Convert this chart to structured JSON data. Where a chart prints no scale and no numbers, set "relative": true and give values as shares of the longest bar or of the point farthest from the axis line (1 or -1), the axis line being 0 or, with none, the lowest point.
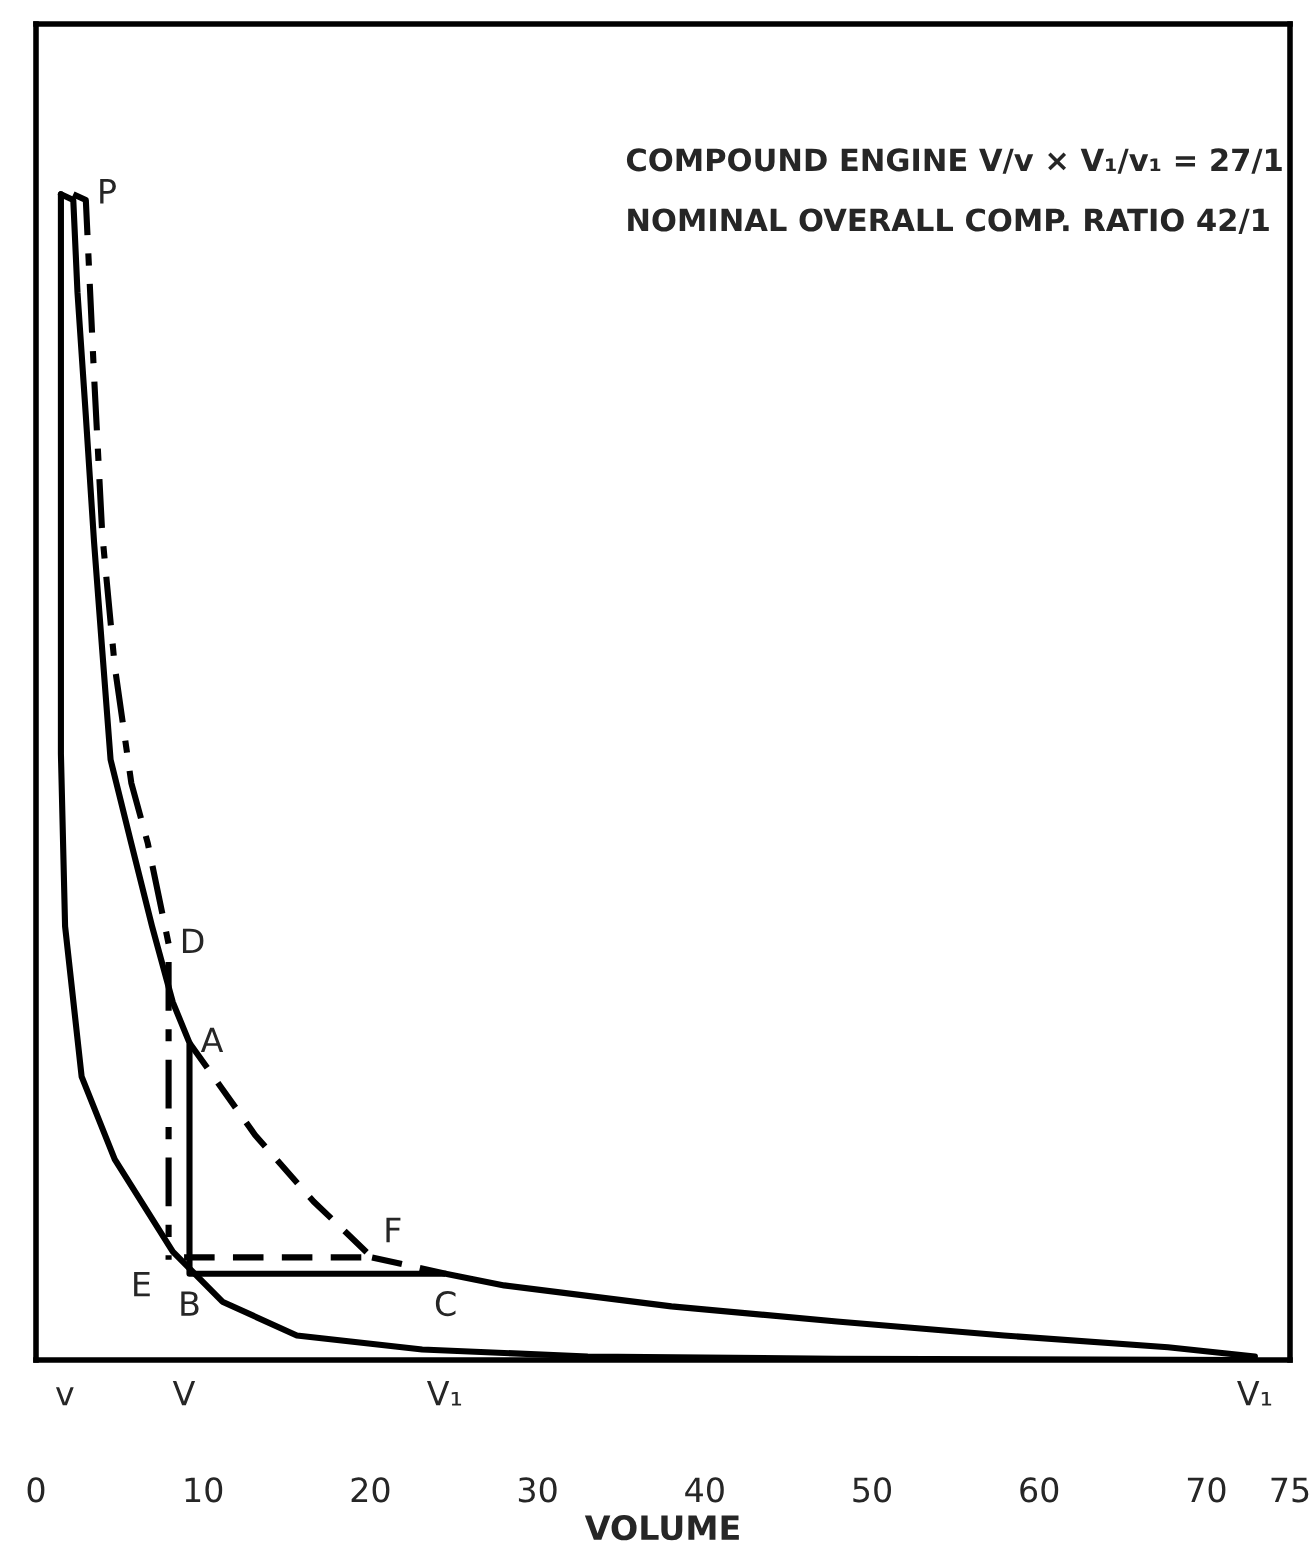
{
  "chart_data": {
    "type": "line",
    "relative": true,
    "xlabel": "VOLUME",
    "xlim": [
      0,
      75
    ],
    "xticks": [
      0,
      10,
      20,
      30,
      40,
      50,
      60,
      70,
      75
    ],
    "tick_labels": "x",
    "grid": false,
    "legend": false,
    "marker": "none",
    "series": [
      {
        "color": "#000000",
        "line_style": "solid",
        "x": [
          1.49,
          1.49,
          1.74,
          2.73,
          4.71,
          8.18,
          11.15,
          15.6,
          23.1,
          33.0,
          47.9,
          72.7
        ],
        "values": [
          1.0,
          0.52,
          0.372,
          0.243,
          0.172,
          0.093,
          0.05,
          0.021,
          0.009,
          0.003,
          0.001,
          0.0
        ]
      },
      {
        "color": "#000000",
        "line_style": "solid",
        "x": [
          1.49,
          2.23,
          2.48,
          2.98,
          3.47,
          3.96,
          4.46,
          5.7,
          6.94,
          8.18,
          9.18,
          9.18,
          24.5,
          28.0,
          38.0,
          47.9,
          57.9,
          67.7,
          72.9
        ],
        "values": [
          1.0,
          0.995,
          0.916,
          0.81,
          0.702,
          0.609,
          0.515,
          0.443,
          0.372,
          0.307,
          0.272,
          0.074,
          0.074,
          0.064,
          0.046,
          0.033,
          0.021,
          0.011,
          0.003
        ]
      },
      {
        "color": "#000000",
        "line_style": "dashed",
        "x": [
          9.18,
          13.1,
          16.6,
          20.1,
          8.68
        ],
        "values": [
          0.272,
          0.193,
          0.136,
          0.088,
          0.088
        ]
      },
      {
        "color": "#000000",
        "line_style": "dashed",
        "x": [
          20.1,
          24.5
        ],
        "values": [
          0.088,
          0.074
        ]
      },
      {
        "color": "#000000",
        "line_style": "dashdot",
        "x": [
          2.23,
          2.98,
          3.47,
          3.96,
          4.71,
          5.7,
          6.69,
          7.93,
          7.93
        ],
        "values": [
          1.0,
          0.995,
          0.845,
          0.709,
          0.595,
          0.495,
          0.443,
          0.357,
          0.086
        ]
      }
    ],
    "annotations": [
      "COMPOUND ENGINE V/v × V₁/v₁ = 27/1",
      "NOMINAL OVERALL COMP. RATIO 42/1",
      "v",
      "V",
      "V₁",
      "V₁",
      {
        "text": "P",
        "x": 2.98,
        "y": 1.0
      },
      {
        "text": "D",
        "x": 7.93,
        "y": 0.357
      },
      {
        "text": "A",
        "x": 9.18,
        "y": 0.272
      },
      {
        "text": "E",
        "x": 7.93,
        "y": 0.086
      },
      {
        "text": "F",
        "x": 20.1,
        "y": 0.088
      },
      {
        "text": "B",
        "x": 9.18,
        "y": 0.074
      },
      {
        "text": "C",
        "x": 24.5,
        "y": 0.074
      }
    ]
  }
}
